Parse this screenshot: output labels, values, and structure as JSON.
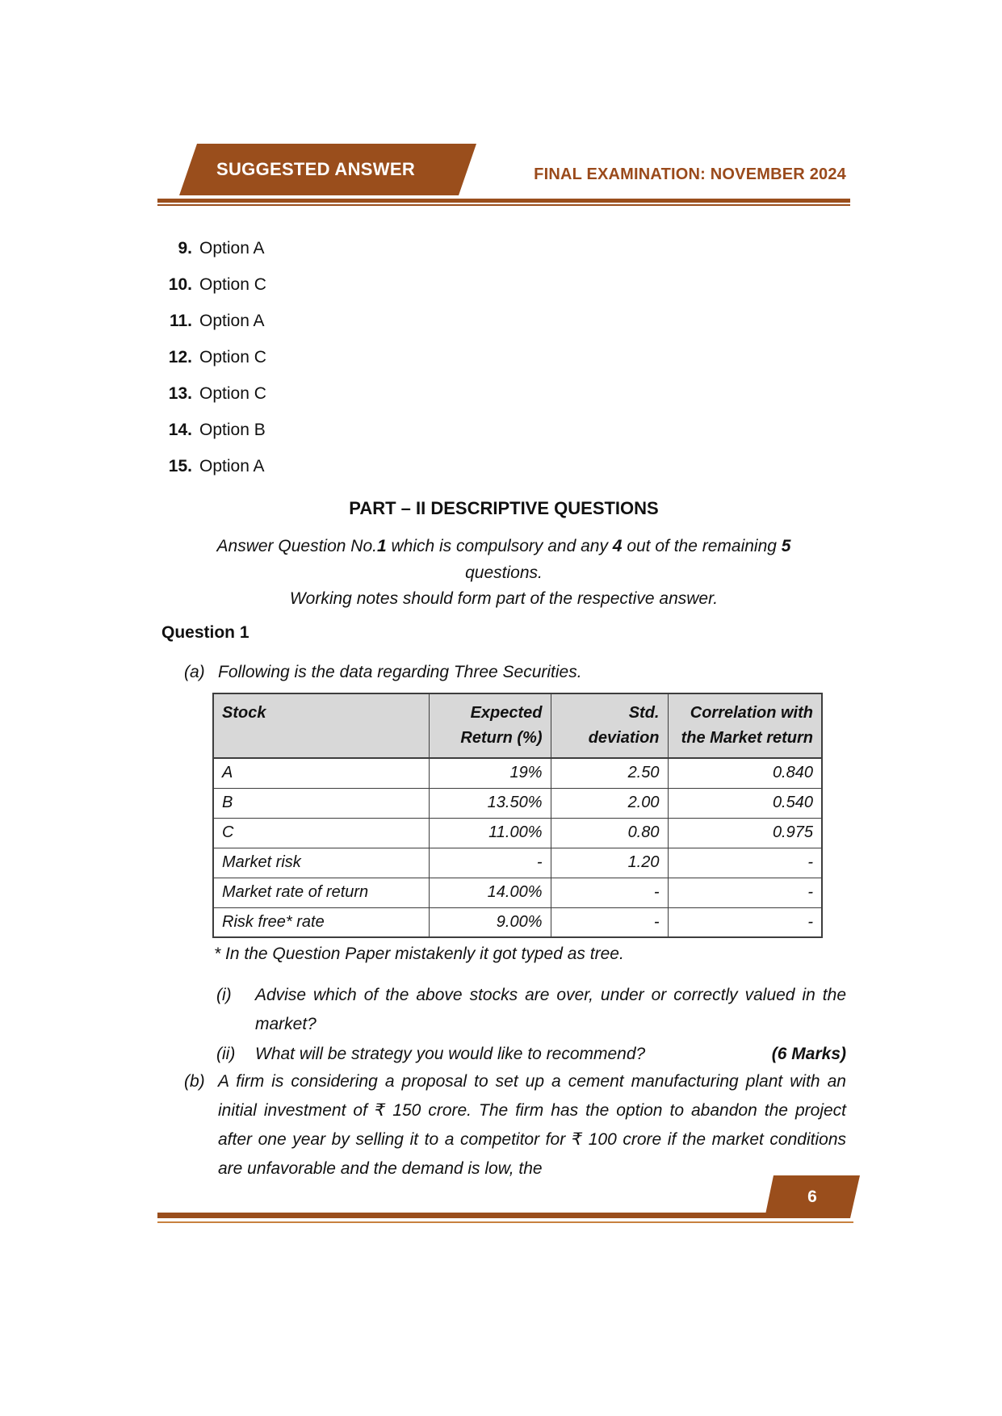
{
  "header": {
    "banner_label": "SUGGESTED ANSWER",
    "exam_title": "FINAL EXAMINATION: NOVEMBER 2024"
  },
  "mcq_answers": [
    {
      "number": "9.",
      "answer": "Option A"
    },
    {
      "number": "10.",
      "answer": "Option C"
    },
    {
      "number": "11.",
      "answer": "Option A"
    },
    {
      "number": "12.",
      "answer": "Option C"
    },
    {
      "number": "13.",
      "answer": "Option C"
    },
    {
      "number": "14.",
      "answer": "Option B"
    },
    {
      "number": "15.",
      "answer": "Option A"
    }
  ],
  "part2": {
    "title": "PART – II DESCRIPTIVE QUESTIONS",
    "instruction": {
      "s1": "Answer Question No.",
      "b1": "1",
      "s2": " which is compulsory and any ",
      "b2": "4",
      "s3": " out of the remaining ",
      "b3": "5",
      "s4": "questions."
    },
    "note": "Working notes should form part of the respective answer."
  },
  "question1": {
    "label": "Question 1",
    "part_a": {
      "label": "(a)",
      "intro": "Following is the data regarding Three Securities.",
      "table": {
        "headers": [
          "Stock",
          "Expected Return (%)",
          "Std. deviation",
          "Correlation with the Market return"
        ],
        "rows": [
          [
            "A",
            "19%",
            "2.50",
            "0.840"
          ],
          [
            "B",
            "13.50%",
            "2.00",
            "0.540"
          ],
          [
            "C",
            "11.00%",
            "0.80",
            "0.975"
          ],
          [
            "Market risk",
            "-",
            "1.20",
            "-"
          ],
          [
            "Market rate of return",
            "14.00%",
            "-",
            "-"
          ],
          [
            "Risk free* rate",
            "9.00%",
            "-",
            "-"
          ]
        ]
      },
      "footnote": "* In the Question Paper mistakenly it got typed as tree.",
      "item_i": {
        "label": "(i)",
        "text": "Advise which of the above stocks are over, under or correctly valued in the market?"
      },
      "item_ii": {
        "label": "(ii)",
        "text": "What will be strategy you would like to recommend?",
        "marks": "(6 Marks)"
      }
    },
    "part_b": {
      "label": "(b)",
      "text": "A firm is considering a proposal to set up a cement manufacturing plant with an initial investment of ₹ 150 crore. The firm has the option to abandon the project after one year by selling it to a competitor for ₹ 100 crore if the market conditions are unfavorable and the demand is low, the"
    }
  },
  "footer": {
    "page_number": "6"
  },
  "colors": {
    "brown": "#9A4E1C",
    "brown_text": "#9A4A1B",
    "table_header_bg": "#D8D8D8",
    "footer_thin": "#C8813F"
  }
}
